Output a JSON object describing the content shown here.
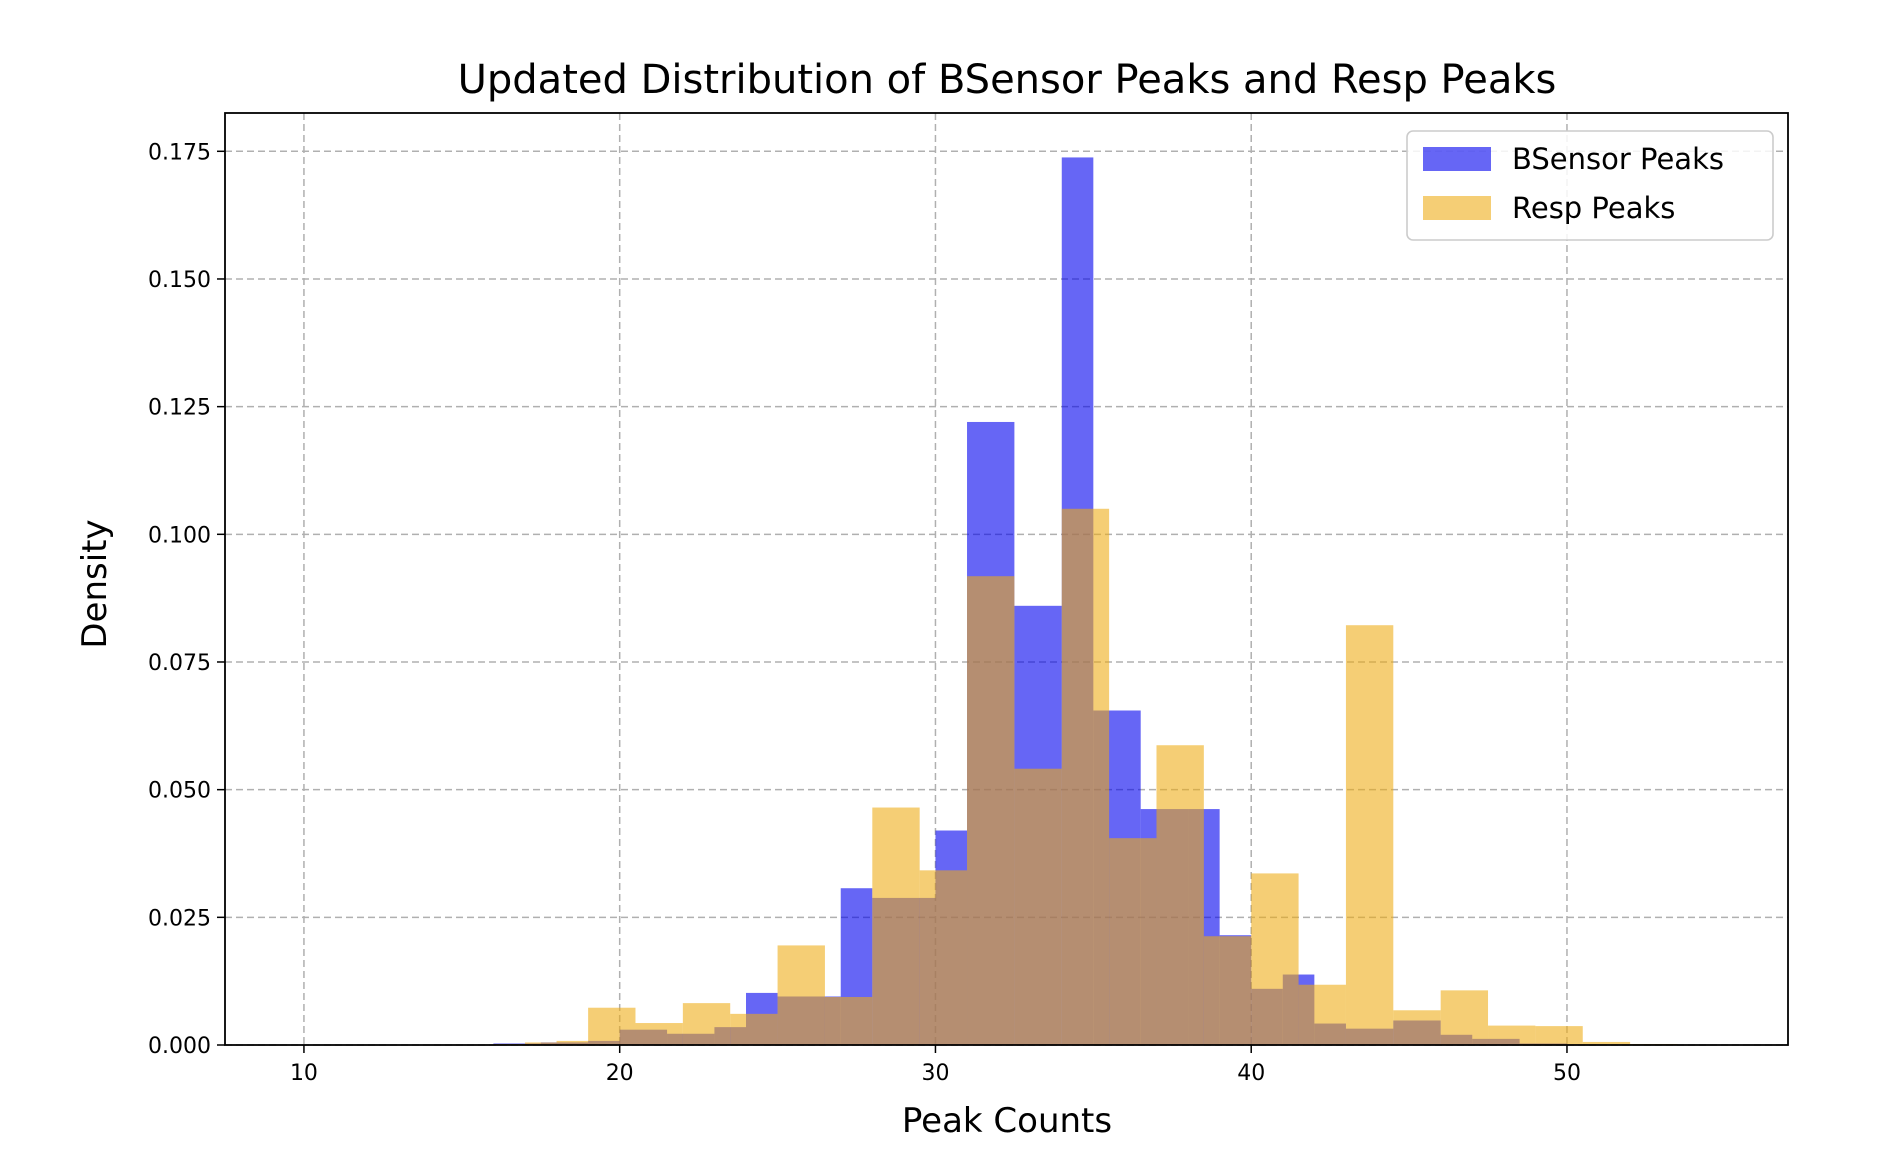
{
  "chart_data": {
    "type": "histogram",
    "title": "Updated Distribution of BSensor Peaks and Resp Peaks",
    "xlabel": "Peak Counts",
    "ylabel": "Density",
    "xlim": [
      7.5,
      57.0
    ],
    "ylim": [
      0,
      0.1825
    ],
    "xticks": [
      10,
      20,
      30,
      40,
      50
    ],
    "yticks": [
      0.0,
      0.025,
      0.05,
      0.075,
      0.1,
      0.125,
      0.15,
      0.175
    ],
    "ytick_labels": [
      "0.000",
      "0.025",
      "0.050",
      "0.075",
      "0.100",
      "0.125",
      "0.150",
      "0.175"
    ],
    "xtick_labels": [
      "10",
      "20",
      "30",
      "40",
      "50"
    ],
    "grid": true,
    "legend_position": "upper-right",
    "series": [
      {
        "name": "BSensor Peaks",
        "color": "#0000ee",
        "opacity": 0.6,
        "bin_edges": [
          16.0,
          17.5,
          19.0,
          20.0,
          21.5,
          23.0,
          24.0,
          25.0,
          27.0,
          28.0,
          30.0,
          31.0,
          32.5,
          34.0,
          35.0,
          36.5,
          38.0,
          39.0,
          40.0,
          41.0,
          42.0,
          43.0,
          44.5,
          46.0,
          47.0,
          48.5,
          50.0
        ],
        "values": [
          0.0003,
          0.0005,
          0.0008,
          0.003,
          0.0022,
          0.0035,
          0.0102,
          0.0095,
          0.0307,
          0.0288,
          0.042,
          0.122,
          0.086,
          0.1738,
          0.0655,
          0.0462,
          0.0462,
          0.0215,
          0.011,
          0.0138,
          0.0042,
          0.0032,
          0.0048,
          0.002,
          0.0012,
          0.0003
        ]
      },
      {
        "name": "Resp Peaks",
        "color": "#eeaa11",
        "opacity": 0.58,
        "bin_edges": [
          16.0,
          17.0,
          18.0,
          19.0,
          20.5,
          22.0,
          23.5,
          25.0,
          26.5,
          28.0,
          29.5,
          31.0,
          32.5,
          34.0,
          35.5,
          37.0,
          38.5,
          40.0,
          41.5,
          43.0,
          44.5,
          46.0,
          47.5,
          49.0,
          50.5,
          52.0,
          53.5
        ],
        "values": [
          0.0002,
          0.0005,
          0.0008,
          0.0073,
          0.0043,
          0.0082,
          0.0061,
          0.0195,
          0.0094,
          0.0465,
          0.0342,
          0.0918,
          0.0541,
          0.105,
          0.0405,
          0.0587,
          0.0213,
          0.0336,
          0.0118,
          0.0822,
          0.0068,
          0.0107,
          0.0038,
          0.0037,
          0.0006,
          0.0002
        ]
      }
    ]
  }
}
